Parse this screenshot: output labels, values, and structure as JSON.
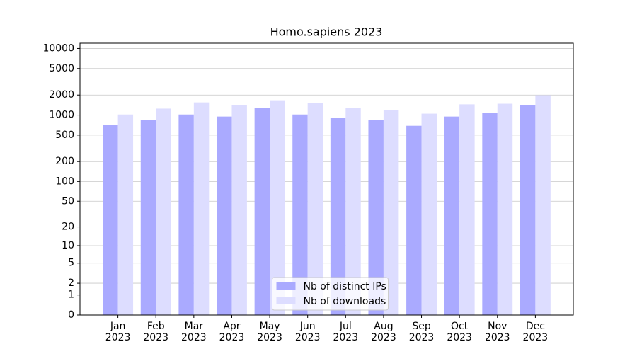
{
  "chart_data": {
    "type": "bar",
    "title": "Homo.sapiens 2023",
    "categories": [
      "Jan\n2023",
      "Feb\n2023",
      "Mar\n2023",
      "Apr\n2023",
      "May\n2023",
      "Jun\n2023",
      "Jul\n2023",
      "Aug\n2023",
      "Sep\n2023",
      "Oct\n2023",
      "Nov\n2023",
      "Dec\n2023"
    ],
    "series": [
      {
        "name": "Nb of distinct IPs",
        "color": "#aaaaff",
        "values": [
          710,
          840,
          1020,
          950,
          1280,
          1020,
          910,
          840,
          690,
          950,
          1080,
          1410
        ]
      },
      {
        "name": "Nb of downloads",
        "color": "#ddddff",
        "values": [
          1020,
          1250,
          1550,
          1410,
          1670,
          1520,
          1280,
          1190,
          1050,
          1450,
          1480,
          1990
        ]
      }
    ],
    "scale": "log1p",
    "ylim": [
      0,
      12000
    ],
    "yticks": [
      0,
      1,
      2,
      5,
      10,
      20,
      50,
      100,
      200,
      500,
      1000,
      2000,
      5000,
      10000
    ],
    "grid": true,
    "legend": "lower center"
  }
}
